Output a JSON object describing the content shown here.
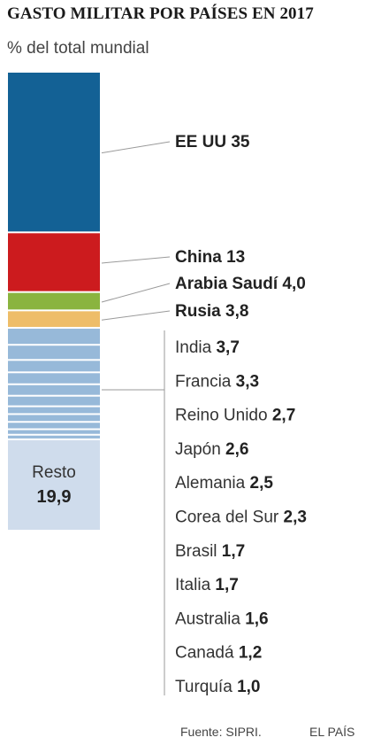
{
  "title": "GASTO MILITAR POR PAÍSES EN 2017",
  "subtitle": "% del total mundial",
  "footer": {
    "source": "Fuente: SIPRI.",
    "brand": "EL PAÍS"
  },
  "chart_data": {
    "type": "bar",
    "stacked": true,
    "orientation": "vertical",
    "title": "GASTO MILITAR POR PAÍSES EN 2017",
    "unit": "% del total mundial",
    "categories": [
      "EE UU",
      "China",
      "Arabia Saudí",
      "Rusia",
      "India",
      "Francia",
      "Reino Unido",
      "Japón",
      "Alemania",
      "Corea del Sur",
      "Brasil",
      "Italia",
      "Australia",
      "Canadá",
      "Turquía",
      "Resto"
    ],
    "values": [
      35,
      13,
      4.0,
      3.8,
      3.7,
      3.3,
      2.7,
      2.6,
      2.5,
      2.3,
      1.7,
      1.7,
      1.6,
      1.2,
      1.0,
      19.9
    ],
    "value_labels": [
      "35",
      "13",
      "4,0",
      "3,8",
      "3,7",
      "3,3",
      "2,7",
      "2,6",
      "2,5",
      "2,3",
      "1,7",
      "1,7",
      "1,6",
      "1,2",
      "1,0",
      "19,9"
    ],
    "colors": [
      "#136195",
      "#cc1b1e",
      "#8ab43f",
      "#eebd68",
      "#97b9d9",
      "#97b9d9",
      "#97b9d9",
      "#97b9d9",
      "#97b9d9",
      "#97b9d9",
      "#97b9d9",
      "#97b9d9",
      "#97b9d9",
      "#97b9d9",
      "#97b9d9",
      "#cfdcec"
    ],
    "label_style": [
      "bold",
      "bold",
      "bold",
      "bold",
      "normal",
      "normal",
      "normal",
      "normal",
      "normal",
      "normal",
      "normal",
      "normal",
      "normal",
      "normal",
      "normal",
      "inside"
    ],
    "total": 100
  }
}
